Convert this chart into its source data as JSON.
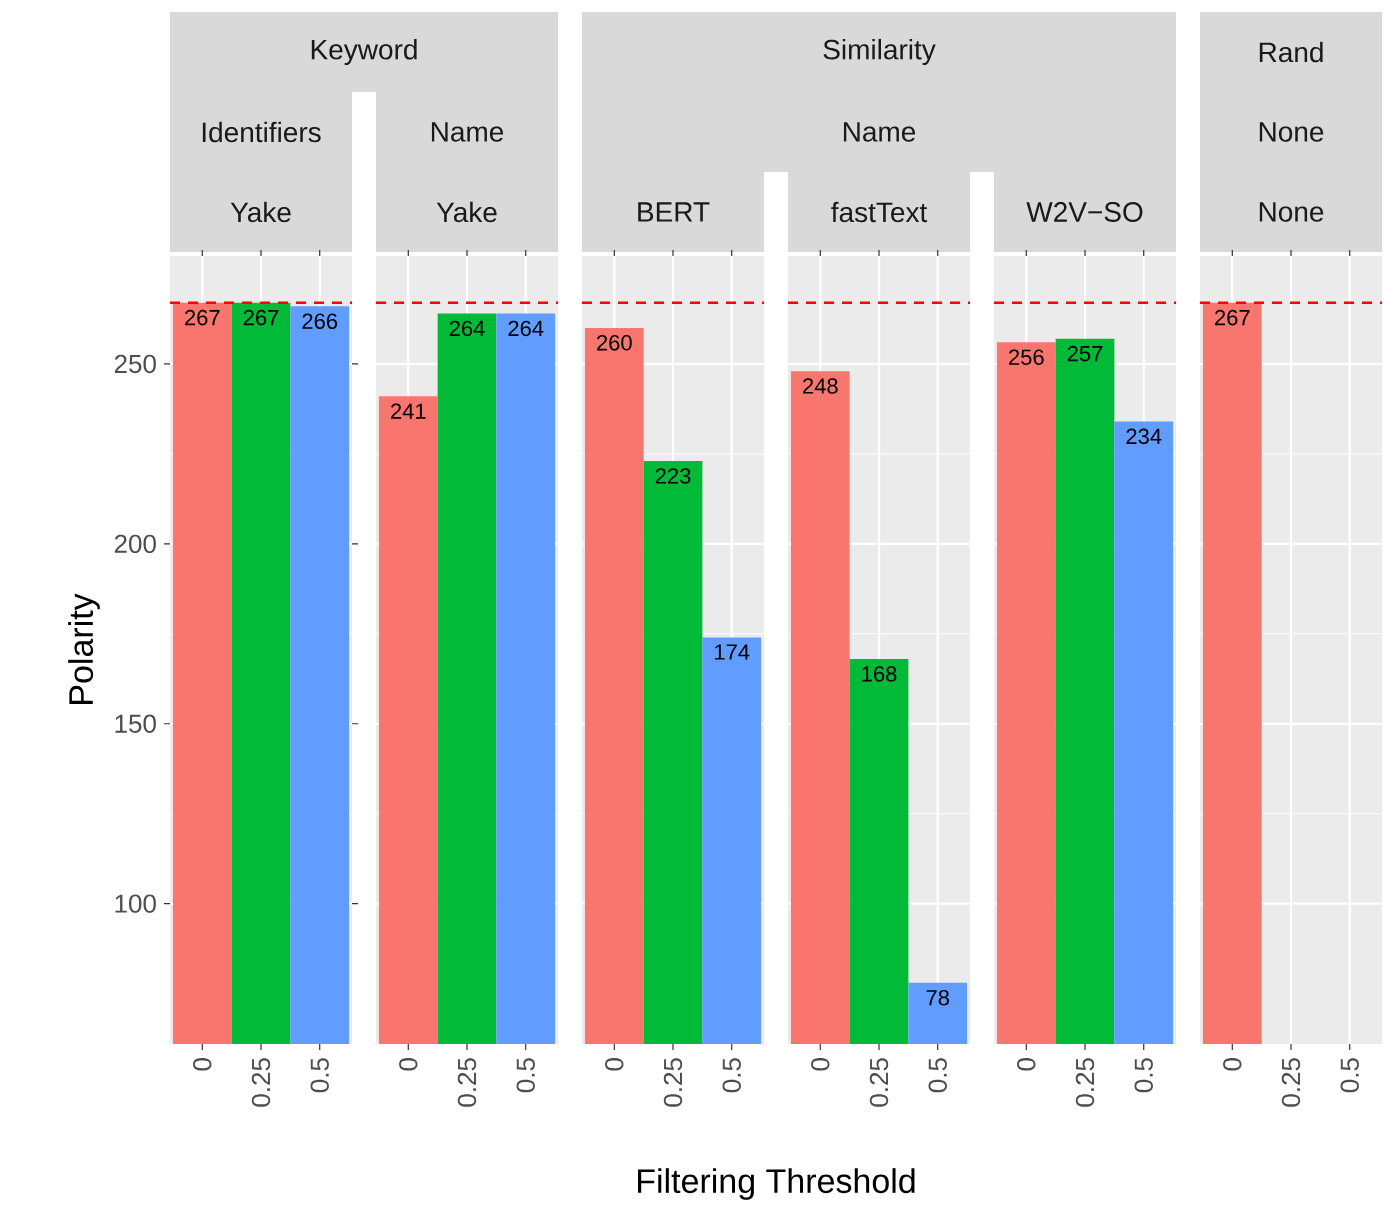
{
  "chart_data": [
    {
      "type": "bar",
      "title": "Keyword",
      "subtitle": "Identifiers",
      "annotations": [
        "Yake"
      ],
      "ylabel": "Polarity",
      "categories": [
        "0",
        "0.25",
        "0.5"
      ],
      "values": [
        267,
        267,
        266
      ],
      "colors": [
        "#f8766d",
        "#00ba38",
        "#619cff"
      ],
      "ylim": [
        61,
        280
      ],
      "yticks": [
        100,
        150,
        200,
        250
      ],
      "grid": true,
      "data_labels": true,
      "ref_lines": [
        {
          "axis": "y",
          "value": 267,
          "color": "#ff0000",
          "line_style": "dashed"
        }
      ]
    },
    {
      "type": "bar",
      "subtitle": "Name",
      "annotations": [
        "Yake"
      ],
      "categories": [
        "0",
        "0.25",
        "0.5"
      ],
      "values": [
        241,
        264,
        264
      ],
      "colors": [
        "#f8766d",
        "#00ba38",
        "#619cff"
      ],
      "ylim": [
        61,
        280
      ],
      "yticks": [
        100,
        150,
        200,
        250
      ],
      "grid": true,
      "data_labels": true,
      "tick_labels": "x",
      "ref_lines": [
        {
          "axis": "y",
          "value": 267,
          "color": "#ff0000",
          "line_style": "dashed"
        }
      ]
    },
    {
      "type": "bar",
      "annotations": [
        "BERT"
      ],
      "categories": [
        "0",
        "0.25",
        "0.5"
      ],
      "values": [
        260,
        223,
        174
      ],
      "colors": [
        "#f8766d",
        "#00ba38",
        "#619cff"
      ],
      "ylim": [
        61,
        280
      ],
      "yticks": [
        100,
        150,
        200,
        250
      ],
      "grid": true,
      "data_labels": true,
      "tick_labels": "x",
      "ref_lines": [
        {
          "axis": "y",
          "value": 267,
          "color": "#ff0000",
          "line_style": "dashed"
        }
      ]
    },
    {
      "type": "bar",
      "title": "Similarity",
      "subtitle": "Name",
      "annotations": [
        "fastText"
      ],
      "xlabel": "Filtering Threshold",
      "categories": [
        "0",
        "0.25",
        "0.5"
      ],
      "values": [
        248,
        168,
        78
      ],
      "colors": [
        "#f8766d",
        "#00ba38",
        "#619cff"
      ],
      "ylim": [
        61,
        280
      ],
      "yticks": [
        100,
        150,
        200,
        250
      ],
      "grid": true,
      "data_labels": true,
      "tick_labels": "x",
      "ref_lines": [
        {
          "axis": "y",
          "value": 267,
          "color": "#ff0000",
          "line_style": "dashed"
        }
      ]
    },
    {
      "type": "bar",
      "annotations": [
        "W2V−SO"
      ],
      "categories": [
        "0",
        "0.25",
        "0.5"
      ],
      "values": [
        256,
        257,
        234
      ],
      "colors": [
        "#f8766d",
        "#00ba38",
        "#619cff"
      ],
      "ylim": [
        61,
        280
      ],
      "yticks": [
        100,
        150,
        200,
        250
      ],
      "grid": true,
      "data_labels": true,
      "tick_labels": "x",
      "ref_lines": [
        {
          "axis": "y",
          "value": 267,
          "color": "#ff0000",
          "line_style": "dashed"
        }
      ]
    },
    {
      "type": "bar",
      "title": "Rand",
      "subtitle": "None",
      "annotations": [
        "None"
      ],
      "categories": [
        "0",
        "0.25",
        "0.5"
      ],
      "values": [
        267,
        null,
        null
      ],
      "colors": [
        "#f8766d",
        "#00ba38",
        "#619cff"
      ],
      "ylim": [
        61,
        280
      ],
      "yticks": [
        100,
        150,
        200,
        250
      ],
      "grid": true,
      "data_labels": true,
      "tick_labels": "x",
      "ref_lines": [
        {
          "axis": "y",
          "value": 267,
          "color": "#ff0000",
          "line_style": "dashed"
        }
      ]
    }
  ]
}
